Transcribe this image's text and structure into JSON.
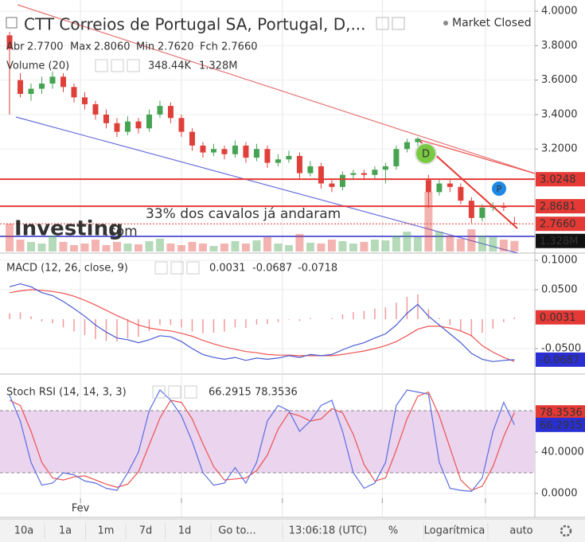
{
  "header": {
    "title": "CTT Correios de Portugal SA, Portugal, D,...",
    "status": "Market Closed",
    "ohlc": [
      [
        "Abr",
        "2.7700"
      ],
      [
        "Max",
        "2.8060"
      ],
      [
        "Min",
        "2.7620"
      ],
      [
        "Fch",
        "2.7660"
      ]
    ],
    "annotation": "33% dos cavalos já andaram",
    "logo": "Investing",
    "logo_suffix": ".com",
    "markers": [
      "D",
      "P"
    ]
  },
  "chart_data": [
    {
      "type": "candlestick",
      "up_color": "#46a352",
      "down_color": "#e0403a",
      "xlim": [
        -0.89,
        48.9
      ],
      "xticks": [
        6.6,
        16,
        25.4,
        34.7,
        44.3
      ],
      "xtick_labels": [
        "Fev",
        null,
        null,
        null,
        null
      ],
      "ylim": [
        2.596,
        4.065
      ],
      "yticks": [
        {
          "value": 4.0,
          "label": "4.0000"
        },
        {
          "value": 3.8,
          "label": "3.8000"
        },
        {
          "value": 3.6,
          "label": "3.6000"
        },
        {
          "value": 3.4,
          "label": "3.4000"
        },
        {
          "value": 3.2,
          "label": "3.2000"
        }
      ],
      "open": [
        3.86,
        3.6,
        3.52,
        3.55,
        3.58,
        3.62,
        3.56,
        3.5,
        3.46,
        3.4,
        3.35,
        3.3,
        3.36,
        3.32,
        3.4,
        3.45,
        3.38,
        3.3,
        3.22,
        3.18,
        3.2,
        3.17,
        3.22,
        3.15,
        3.2,
        3.12,
        3.14,
        3.16,
        3.06,
        3.1,
        3.0,
        2.98,
        3.05,
        3.06,
        3.05,
        3.08,
        3.1,
        3.2,
        3.24,
        3.02,
        2.95,
        3.0,
        2.98,
        2.9,
        2.8,
        2.86,
        2.87,
        2.77
      ],
      "high": [
        3.88,
        3.64,
        3.58,
        3.62,
        3.65,
        3.64,
        3.58,
        3.53,
        3.48,
        3.43,
        3.38,
        3.39,
        3.38,
        3.43,
        3.48,
        3.47,
        3.4,
        3.32,
        3.24,
        3.23,
        3.22,
        3.25,
        3.24,
        3.23,
        3.22,
        3.17,
        3.19,
        3.18,
        3.13,
        3.12,
        3.02,
        3.07,
        3.08,
        3.08,
        3.1,
        3.12,
        3.22,
        3.26,
        3.27,
        3.05,
        3.03,
        3.02,
        3.0,
        2.92,
        2.88,
        2.89,
        2.89,
        2.806
      ],
      "low": [
        3.4,
        3.5,
        3.48,
        3.52,
        3.55,
        3.53,
        3.47,
        3.43,
        3.37,
        3.32,
        3.27,
        3.28,
        3.29,
        3.3,
        3.38,
        3.35,
        3.27,
        3.19,
        3.15,
        3.16,
        3.14,
        3.15,
        3.12,
        3.13,
        3.09,
        3.1,
        3.12,
        3.03,
        3.04,
        2.97,
        2.95,
        2.96,
        3.02,
        3.02,
        3.03,
        3.0,
        3.08,
        3.18,
        3.21,
        2.86,
        2.93,
        2.95,
        2.88,
        2.77,
        2.78,
        2.84,
        2.84,
        2.762
      ],
      "close": [
        3.78,
        3.52,
        3.55,
        3.58,
        3.62,
        3.56,
        3.5,
        3.46,
        3.4,
        3.35,
        3.3,
        3.36,
        3.32,
        3.4,
        3.45,
        3.38,
        3.3,
        3.22,
        3.18,
        3.2,
        3.17,
        3.22,
        3.15,
        3.2,
        3.12,
        3.14,
        3.16,
        3.06,
        3.1,
        3.0,
        2.98,
        3.05,
        3.06,
        3.05,
        3.08,
        3.1,
        3.2,
        3.24,
        3.26,
        2.95,
        3.0,
        2.98,
        2.9,
        2.8,
        2.86,
        2.87,
        2.86,
        2.766
      ],
      "volume": {
        "name": "Volume (20)",
        "ma_label": "348.44K",
        "ylim": [
          0,
          8
        ],
        "values": [
          3.5,
          1.5,
          1.2,
          1.0,
          2.0,
          1.2,
          0.8,
          1.0,
          1.5,
          0.8,
          1.2,
          1.0,
          0.9,
          1.3,
          1.6,
          1.0,
          0.8,
          1.2,
          1.0,
          0.7,
          1.0,
          1.3,
          1.0,
          1.4,
          1.8,
          1.0,
          0.8,
          2.2,
          1.1,
          1.0,
          1.5,
          1.3,
          1.0,
          1.2,
          1.5,
          1.4,
          2.0,
          2.5,
          1.8,
          7.5,
          2.5,
          2.0,
          1.6,
          2.8,
          2.0,
          1.8,
          1.5,
          1.328
        ],
        "value_labels": [
          null,
          null,
          null,
          null,
          null,
          null,
          null,
          null,
          null,
          null,
          null,
          null,
          null,
          null,
          null,
          null,
          null,
          null,
          null,
          null,
          null,
          null,
          null,
          null,
          null,
          null,
          null,
          null,
          null,
          null,
          null,
          null,
          null,
          null,
          null,
          null,
          null,
          null,
          null,
          null,
          null,
          null,
          null,
          null,
          null,
          null,
          null,
          "1.328M"
        ]
      },
      "levels": [
        {
          "value": 3.0248,
          "color": "#e53935"
        },
        {
          "value": 2.8681,
          "color": "#e53935"
        },
        {
          "value": 2.766,
          "label": "2.7660",
          "color": "#e53935"
        }
      ]
    },
    {
      "type": "macd",
      "name": "MACD (12, 26, close, 9)",
      "macd_color": "#4a5bd4",
      "signal_color": "#ef5350",
      "hist_color": "#ef9a9a",
      "ylim": [
        -0.0932,
        0.1122
      ],
      "yticks": [
        {
          "value": 0.1,
          "label": "0.1000"
        },
        {
          "value": 0.05,
          "label": "0.0500"
        },
        {
          "value": -0.05,
          "label": "-0.0500"
        }
      ],
      "macd": [
        0.055,
        0.06,
        0.055,
        0.045,
        0.04,
        0.03,
        0.018,
        0.005,
        -0.01,
        -0.022,
        -0.032,
        -0.035,
        -0.04,
        -0.035,
        -0.028,
        -0.03,
        -0.038,
        -0.05,
        -0.06,
        -0.065,
        -0.068,
        -0.065,
        -0.07,
        -0.066,
        -0.068,
        -0.066,
        -0.062,
        -0.065,
        -0.06,
        -0.062,
        -0.06,
        -0.052,
        -0.045,
        -0.04,
        -0.032,
        -0.025,
        -0.01,
        0.01,
        0.025,
        0.005,
        -0.01,
        -0.025,
        -0.04,
        -0.058,
        -0.068,
        -0.072,
        -0.07,
        -0.0687
      ],
      "signal": [
        0.045,
        0.048,
        0.05,
        0.049,
        0.047,
        0.044,
        0.039,
        0.032,
        0.024,
        0.015,
        0.006,
        -0.002,
        -0.01,
        -0.015,
        -0.018,
        -0.02,
        -0.024,
        -0.029,
        -0.036,
        -0.042,
        -0.047,
        -0.051,
        -0.055,
        -0.057,
        -0.06,
        -0.061,
        -0.061,
        -0.062,
        -0.062,
        -0.062,
        -0.062,
        -0.06,
        -0.057,
        -0.054,
        -0.05,
        -0.045,
        -0.038,
        -0.028,
        -0.017,
        -0.012,
        -0.012,
        -0.015,
        -0.02,
        -0.028,
        -0.045,
        -0.056,
        -0.065,
        -0.0718
      ],
      "histogram": [
        0.01,
        0.012,
        0.005,
        -0.004,
        -0.007,
        -0.014,
        -0.021,
        -0.027,
        -0.034,
        -0.037,
        -0.038,
        -0.033,
        -0.03,
        -0.02,
        -0.01,
        -0.01,
        -0.014,
        -0.021,
        -0.024,
        -0.023,
        -0.021,
        -0.014,
        -0.015,
        -0.009,
        -0.008,
        -0.005,
        -0.001,
        -0.003,
        0.002,
        0.0,
        0.002,
        0.008,
        0.012,
        0.014,
        0.018,
        0.02,
        0.028,
        0.038,
        0.042,
        0.017,
        0.002,
        -0.01,
        -0.02,
        -0.03,
        -0.023,
        -0.016,
        -0.005,
        0.0031
      ]
    },
    {
      "type": "stoch",
      "name": "Stoch RSI (14, 14, 3, 3)",
      "k_color": "#5b6ee1",
      "d_color": "#ef5350",
      "band_color": "#ead4ee",
      "ylim": [
        -23.1,
        115.4
      ],
      "band": [
        20,
        80
      ],
      "yticks": [
        {
          "value": 40,
          "label": "40.0000"
        },
        {
          "value": 0,
          "label": "0.0000"
        }
      ],
      "k": [
        95,
        70,
        30,
        8,
        10,
        20,
        18,
        12,
        10,
        5,
        3,
        20,
        40,
        80,
        100,
        90,
        75,
        50,
        20,
        8,
        10,
        25,
        10,
        30,
        70,
        85,
        80,
        60,
        70,
        85,
        90,
        60,
        20,
        5,
        10,
        30,
        85,
        100,
        98,
        96,
        30,
        5,
        3,
        2,
        15,
        60,
        88,
        66.2915
      ],
      "d": [
        90,
        85,
        60,
        30,
        15,
        13,
        16,
        17,
        13,
        9,
        6,
        9,
        21,
        47,
        73,
        90,
        88,
        72,
        48,
        26,
        13,
        14,
        15,
        22,
        37,
        62,
        78,
        75,
        70,
        72,
        82,
        78,
        57,
        28,
        12,
        15,
        42,
        72,
        94,
        98,
        75,
        44,
        13,
        3,
        7,
        26,
        55,
        78.3536
      ]
    }
  ],
  "toolbar": [
    "10a",
    "1a",
    "1m",
    "7d",
    "1d",
    "Go to...",
    "13:06:18 (UTC)",
    "%",
    "Logarítmica",
    "auto"
  ]
}
